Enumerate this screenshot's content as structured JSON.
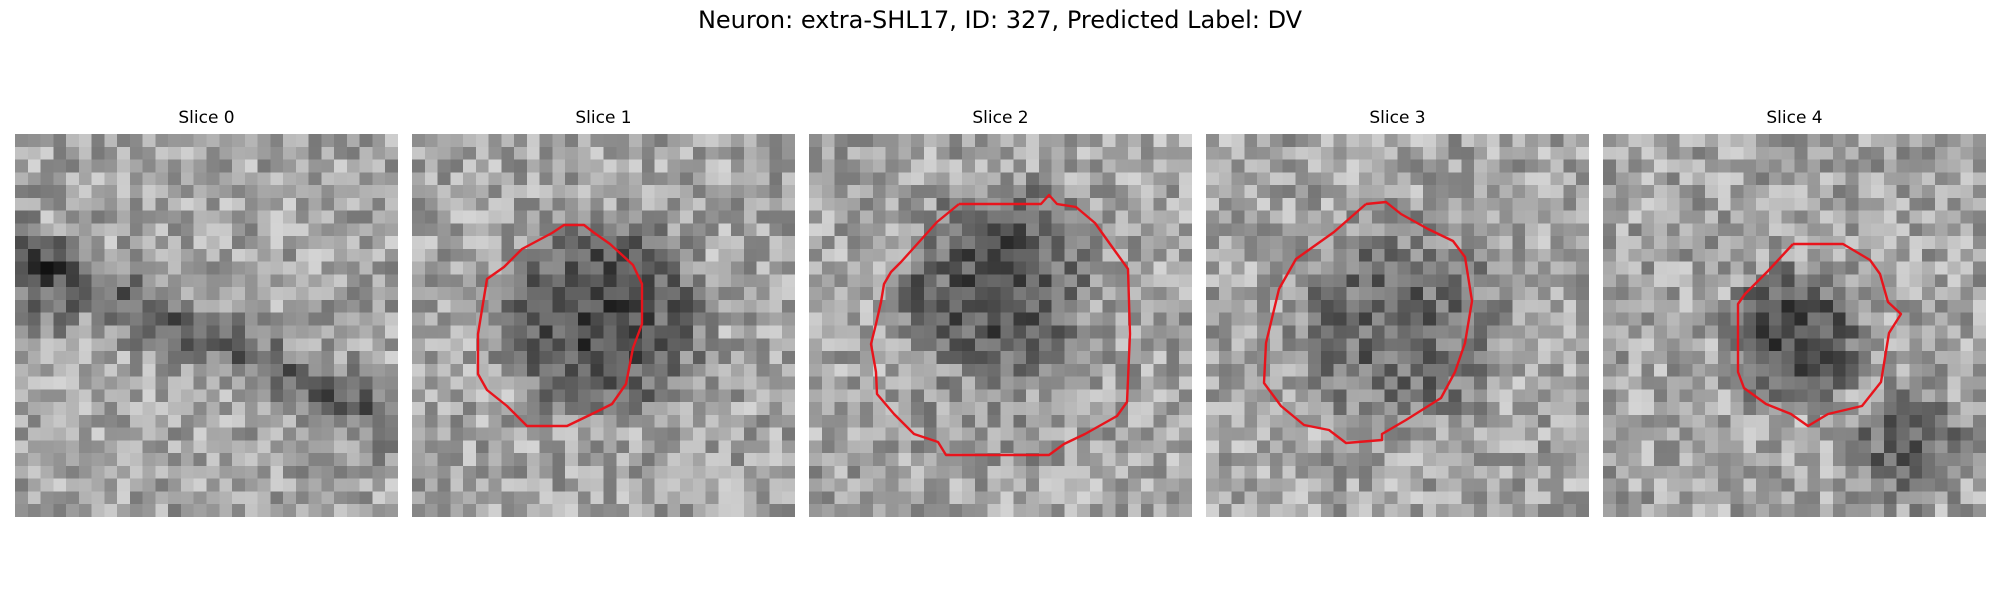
{
  "figure": {
    "title": "Neuron: extra-SHL17, ID: 327, Predicted Label: DV",
    "contour_color": "#e8141c"
  },
  "panels": [
    {
      "title": "Slice 0",
      "has_contour": false
    },
    {
      "title": "Slice 1",
      "has_contour": true
    },
    {
      "title": "Slice 2",
      "has_contour": true
    },
    {
      "title": "Slice 3",
      "has_contour": true
    },
    {
      "title": "Slice 4",
      "has_contour": true
    }
  ]
}
